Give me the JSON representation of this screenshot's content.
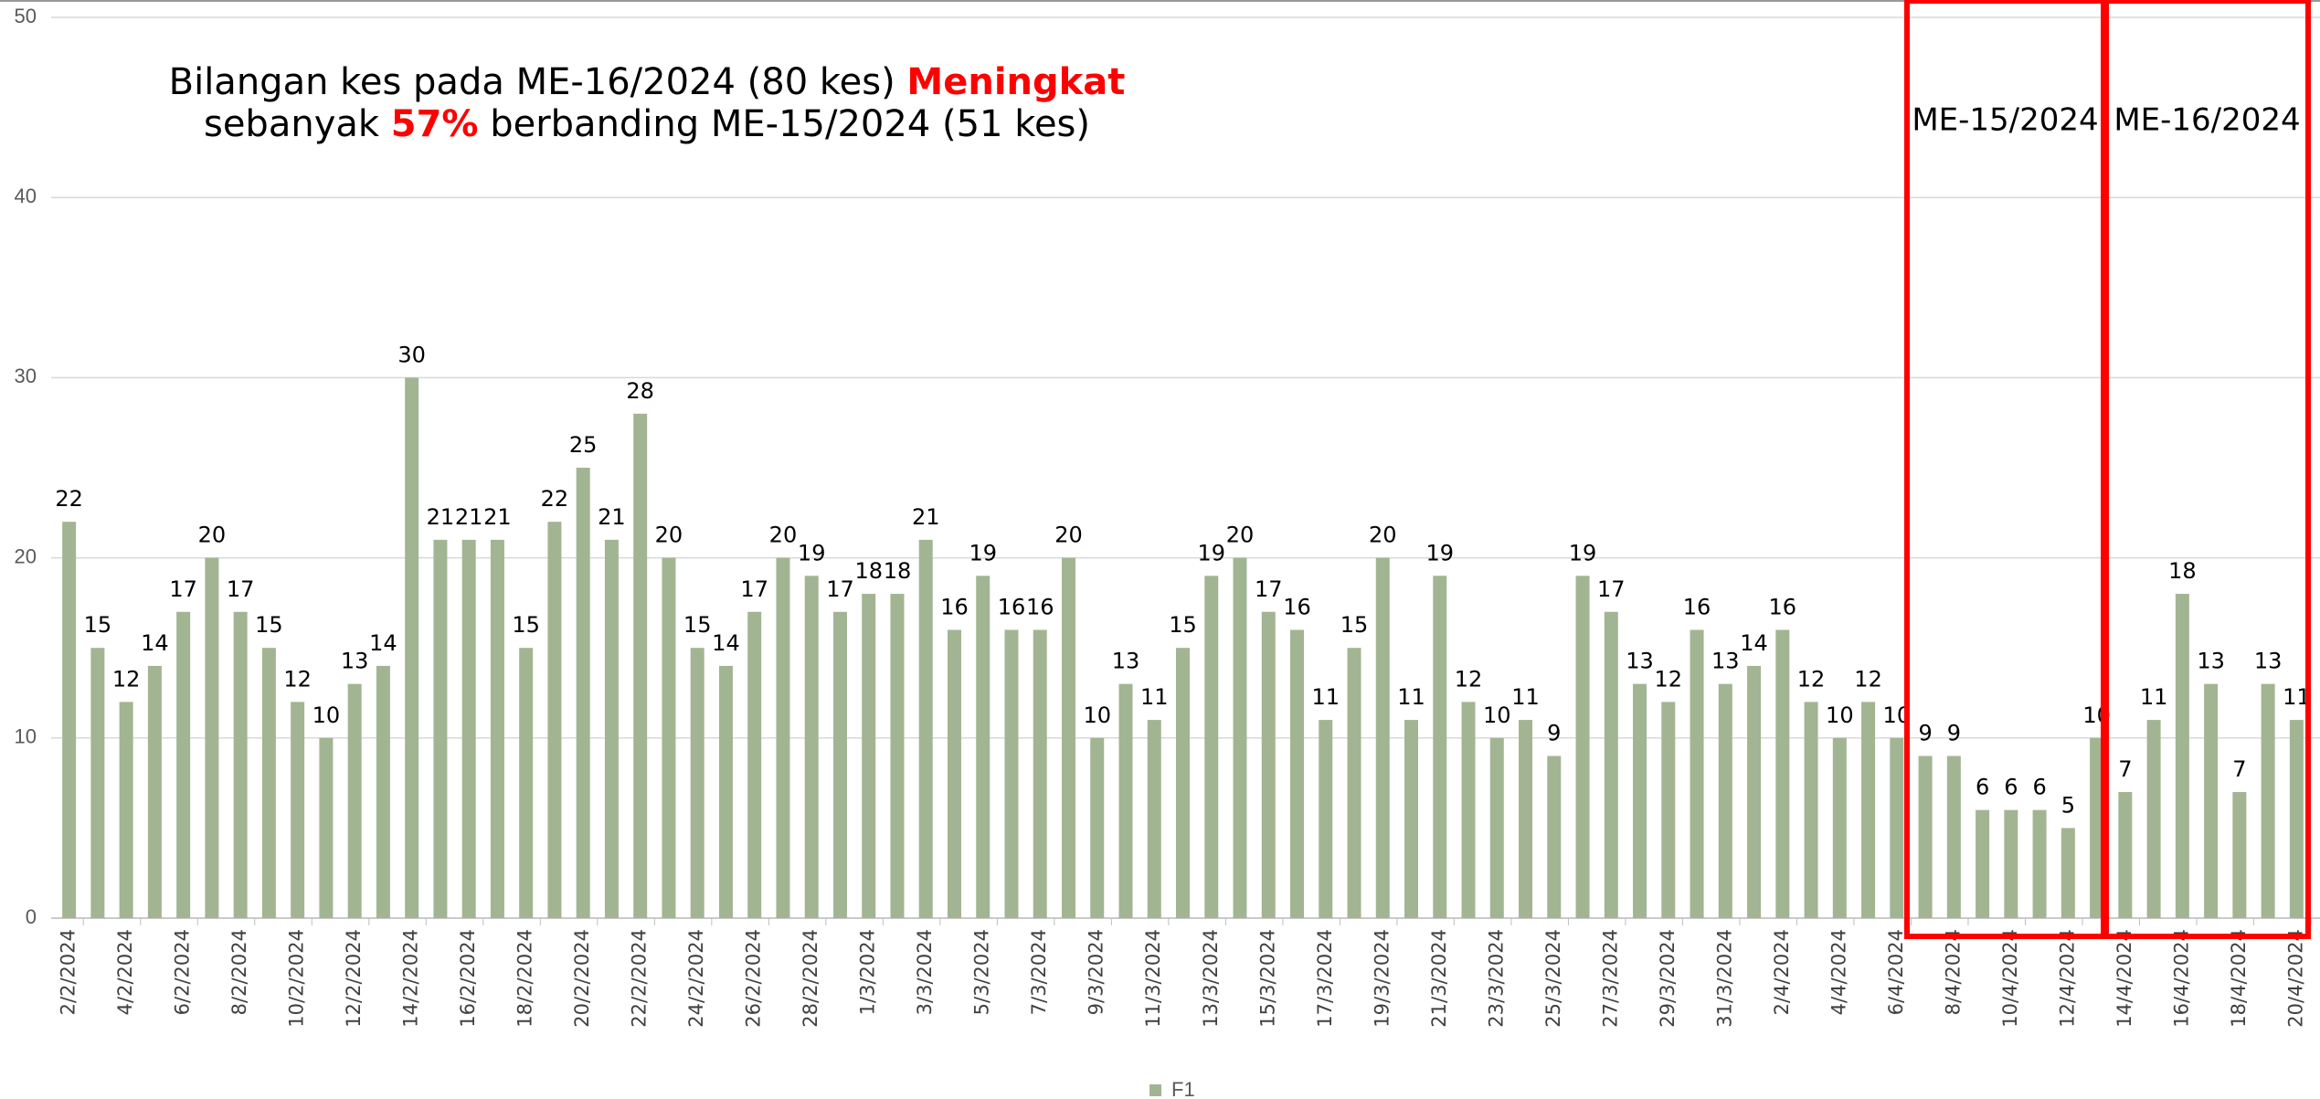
{
  "chart_data": {
    "type": "bar",
    "title_lines": [
      [
        {
          "text": "Bilangan kes pada ME-16/2024 (80 kes) "
        },
        {
          "text": "Meningkat",
          "color": "#ff0000"
        }
      ],
      [
        {
          "text": "sebanyak "
        },
        {
          "text": "57%",
          "color": "#ff0000"
        },
        {
          "text": " berbanding ME-15/2024 (51 kes)"
        }
      ]
    ],
    "periods": [
      {
        "label": "ME-15/2024",
        "color": "#ff0000"
      },
      {
        "label": "ME-16/2024",
        "color": "#ff0000"
      }
    ],
    "categories": [
      "2/2/2024",
      null,
      "4/2/2024",
      null,
      "6/2/2024",
      null,
      "8/2/2024",
      null,
      "10/2/2024",
      null,
      "12/2/2024",
      null,
      "14/2/2024",
      null,
      "16/2/2024",
      null,
      "18/2/2024",
      null,
      "20/2/2024",
      null,
      "22/2/2024",
      null,
      "24/2/2024",
      null,
      "26/2/2024",
      null,
      "28/2/2024",
      null,
      "1/3/2024",
      null,
      "3/3/2024",
      null,
      "5/3/2024",
      null,
      "7/3/2024",
      null,
      "9/3/2024",
      null,
      "11/3/2024",
      null,
      "13/3/2024",
      null,
      "15/3/2024",
      null,
      "17/3/2024",
      null,
      "19/3/2024",
      null,
      "21/3/2024",
      null,
      "23/3/2024",
      null,
      "25/3/2024",
      null,
      "27/3/2024",
      null,
      "29/3/2024",
      null,
      "31/3/2024",
      null,
      "2/4/2024",
      null,
      "4/4/2024",
      null,
      "6/4/2024",
      null,
      "8/4/2024",
      null,
      "10/4/2024",
      null,
      "12/4/2024",
      null,
      "14/4/2024",
      null,
      "16/4/2024",
      null,
      "18/4/2024",
      null,
      "20/4/2024"
    ],
    "series": [
      {
        "name": "F1",
        "color": "#a2b592",
        "values": [
          22,
          15,
          12,
          14,
          17,
          20,
          17,
          15,
          12,
          10,
          13,
          14,
          30,
          21,
          21,
          21,
          15,
          22,
          25,
          21,
          28,
          20,
          15,
          14,
          17,
          20,
          19,
          17,
          18,
          18,
          21,
          16,
          19,
          16,
          16,
          20,
          10,
          13,
          11,
          15,
          19,
          20,
          17,
          16,
          11,
          15,
          20,
          11,
          19,
          12,
          10,
          11,
          9,
          19,
          17,
          13,
          12,
          16,
          13,
          14,
          16,
          12,
          10,
          12,
          10,
          9,
          9,
          6,
          6,
          6,
          5,
          10,
          7,
          11,
          18,
          13,
          7,
          13,
          11
        ]
      }
    ],
    "ylim": [
      0,
      50
    ],
    "yticks": [
      0,
      10,
      20,
      30,
      40,
      50
    ],
    "grid": true,
    "legend": "bottom"
  }
}
